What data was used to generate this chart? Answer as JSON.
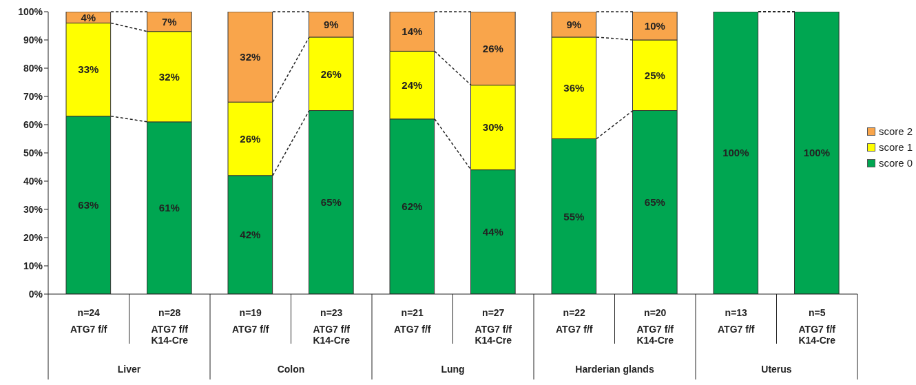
{
  "chart_data": {
    "type": "bar",
    "stacked": true,
    "categories": [
      "n=24\nATG7 f/f",
      "n=28\nATG7 f/f\nK14-Cre",
      "n=19\nATG7 f/f",
      "n=23\nATG7 f/f\nK14-Cre",
      "n=21\nATG7 f/f",
      "n=27\nATG7 f/f\nK14-Cre",
      "n=22\nATG7 f/f",
      "n=20\nATG7 f/f\nK14-Cre",
      "n=13\nATG7 f/f",
      "n=5\nATG7 f/f\nK14-Cre"
    ],
    "series": [
      {
        "name": "score 0",
        "color": "#00a651",
        "values": [
          63,
          61,
          42,
          65,
          62,
          44,
          55,
          65,
          100,
          100
        ],
        "value_labels": [
          "63%",
          "61%",
          "42%",
          "65%",
          "62%",
          "44%",
          "55%",
          "65%",
          "100%",
          "100%"
        ]
      },
      {
        "name": "score 1",
        "color": "#ffff00",
        "values": [
          33,
          32,
          26,
          26,
          24,
          30,
          36,
          25,
          0,
          0
        ],
        "value_labels": [
          "33%",
          "32%",
          "26%",
          "26%",
          "24%",
          "30%",
          "36%",
          "25%",
          null,
          null
        ]
      },
      {
        "name": "score 2",
        "color": "#f9a54b",
        "values": [
          4,
          7,
          32,
          9,
          14,
          26,
          9,
          10,
          0,
          0
        ],
        "value_labels": [
          "4%",
          "7%",
          "32%",
          "9%",
          "14%",
          "26%",
          "9%",
          "10%",
          null,
          null
        ]
      }
    ],
    "annotations": [
      "Liver",
      "Colon",
      "Lung",
      "Harderian glands",
      "Uterus"
    ],
    "ylim": [
      0,
      100
    ],
    "yticks": [
      {
        "value": 0,
        "label": "0%"
      },
      {
        "value": 10,
        "label": "10%"
      },
      {
        "value": 20,
        "label": "20%"
      },
      {
        "value": 30,
        "label": "30%"
      },
      {
        "value": 40,
        "label": "40%"
      },
      {
        "value": 50,
        "label": "50%"
      },
      {
        "value": 60,
        "label": "60%"
      },
      {
        "value": 70,
        "label": "70%"
      },
      {
        "value": 80,
        "label": "80%"
      },
      {
        "value": 90,
        "label": "90%"
      },
      {
        "value": 100,
        "label": "100%"
      }
    ],
    "grid": false,
    "legend": "right"
  }
}
